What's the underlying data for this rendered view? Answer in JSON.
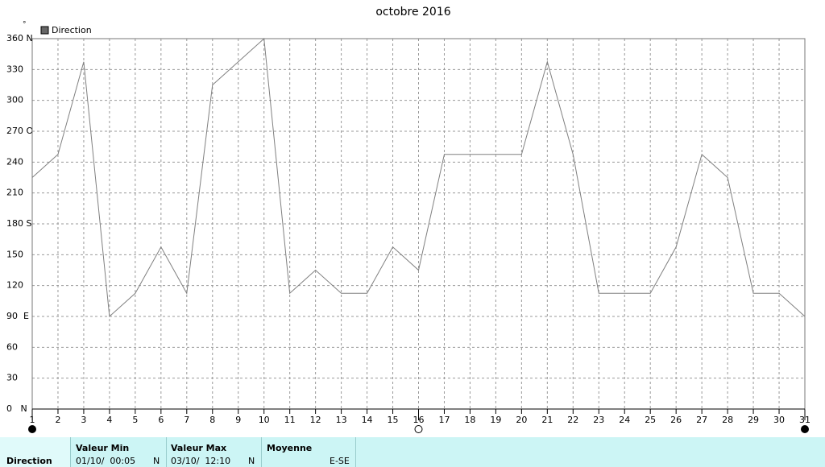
{
  "chart_data": {
    "type": "line",
    "title": "octobre 2016",
    "y_label": "°",
    "x": [
      1,
      2,
      3,
      4,
      5,
      6,
      7,
      8,
      9,
      10,
      11,
      12,
      13,
      14,
      15,
      16,
      17,
      18,
      19,
      20,
      21,
      22,
      23,
      24,
      25,
      26,
      27,
      28,
      29,
      30,
      31
    ],
    "series": [
      {
        "name": "Direction",
        "color": "#808080",
        "values": [
          225,
          247.5,
          337.5,
          90,
          112.5,
          157.5,
          112.5,
          315,
          337.5,
          360,
          112.5,
          135,
          112.5,
          112.5,
          157.5,
          135,
          247.5,
          247.5,
          247.5,
          247.5,
          337.5,
          247.5,
          112.5,
          112.5,
          112.5,
          157.5,
          247.5,
          225,
          112.5,
          112.5,
          90
        ]
      }
    ],
    "xlim": [
      1,
      31
    ],
    "xticks": [
      1,
      2,
      3,
      4,
      5,
      6,
      7,
      8,
      9,
      10,
      11,
      12,
      13,
      14,
      15,
      16,
      17,
      18,
      19,
      20,
      21,
      22,
      23,
      24,
      25,
      26,
      27,
      28,
      29,
      30,
      31
    ],
    "ylim": [
      0,
      360
    ],
    "yticks": [
      {
        "value": 0,
        "label": "0   N"
      },
      30,
      60,
      {
        "value": 90,
        "label": "90  E"
      },
      120,
      150,
      {
        "value": 180,
        "label": "180 S"
      },
      210,
      240,
      {
        "value": 270,
        "label": "270 O"
      },
      300,
      330,
      {
        "value": 360,
        "label": "360 N"
      }
    ],
    "grid": true,
    "legend": "top-left"
  },
  "summary_table": {
    "row_label": "Direction",
    "columns": [
      {
        "header": "Valeur Min",
        "date": "01/10/  00:05",
        "dir": "N"
      },
      {
        "header": "Valeur Max",
        "date": "03/10/  12:10",
        "dir": "N"
      },
      {
        "header": "Moyenne",
        "dir": "E-SE"
      }
    ]
  }
}
